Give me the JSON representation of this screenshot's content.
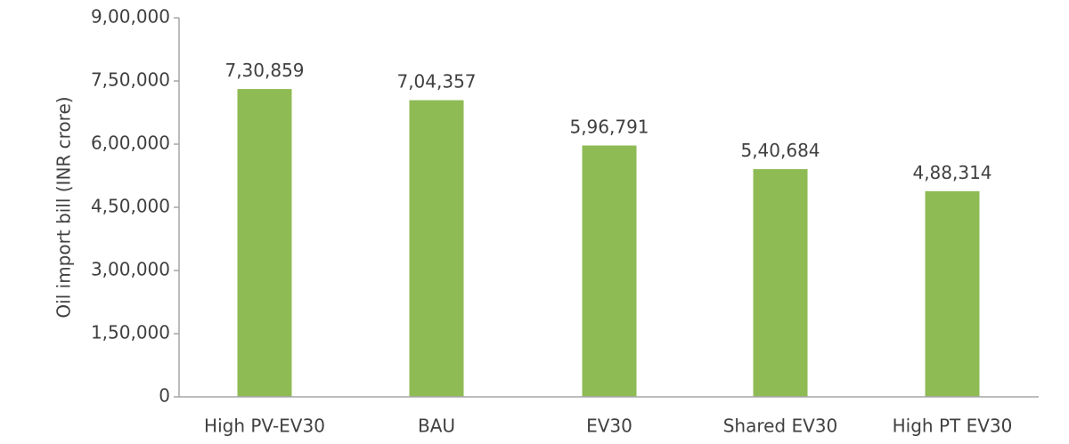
{
  "chart_data": {
    "type": "bar",
    "title": "",
    "xlabel": "",
    "ylabel": "Oil import bill (INR crore)",
    "ylim": [
      0,
      900000
    ],
    "yticks": [
      0,
      150000,
      300000,
      450000,
      600000,
      750000,
      900000
    ],
    "ytick_labels": [
      "0",
      "1,50,000",
      "3,00,000",
      "4,50,000",
      "6,00,000",
      "7,50,000",
      "9,00,000"
    ],
    "grid": false,
    "legend": "none",
    "categories": [
      "High PV-EV30",
      "BAU",
      "EV30",
      "Shared EV30",
      "High PT EV30"
    ],
    "values": [
      730859,
      704357,
      596791,
      540684,
      488314
    ],
    "data_labels": [
      "7,30,859",
      "7,04,357",
      "5,96,791",
      "5,40,684",
      "4,88,314"
    ],
    "colors": {
      "bar": "#8fbb54",
      "axis": "#a6a6a6",
      "text": "#404040"
    }
  }
}
